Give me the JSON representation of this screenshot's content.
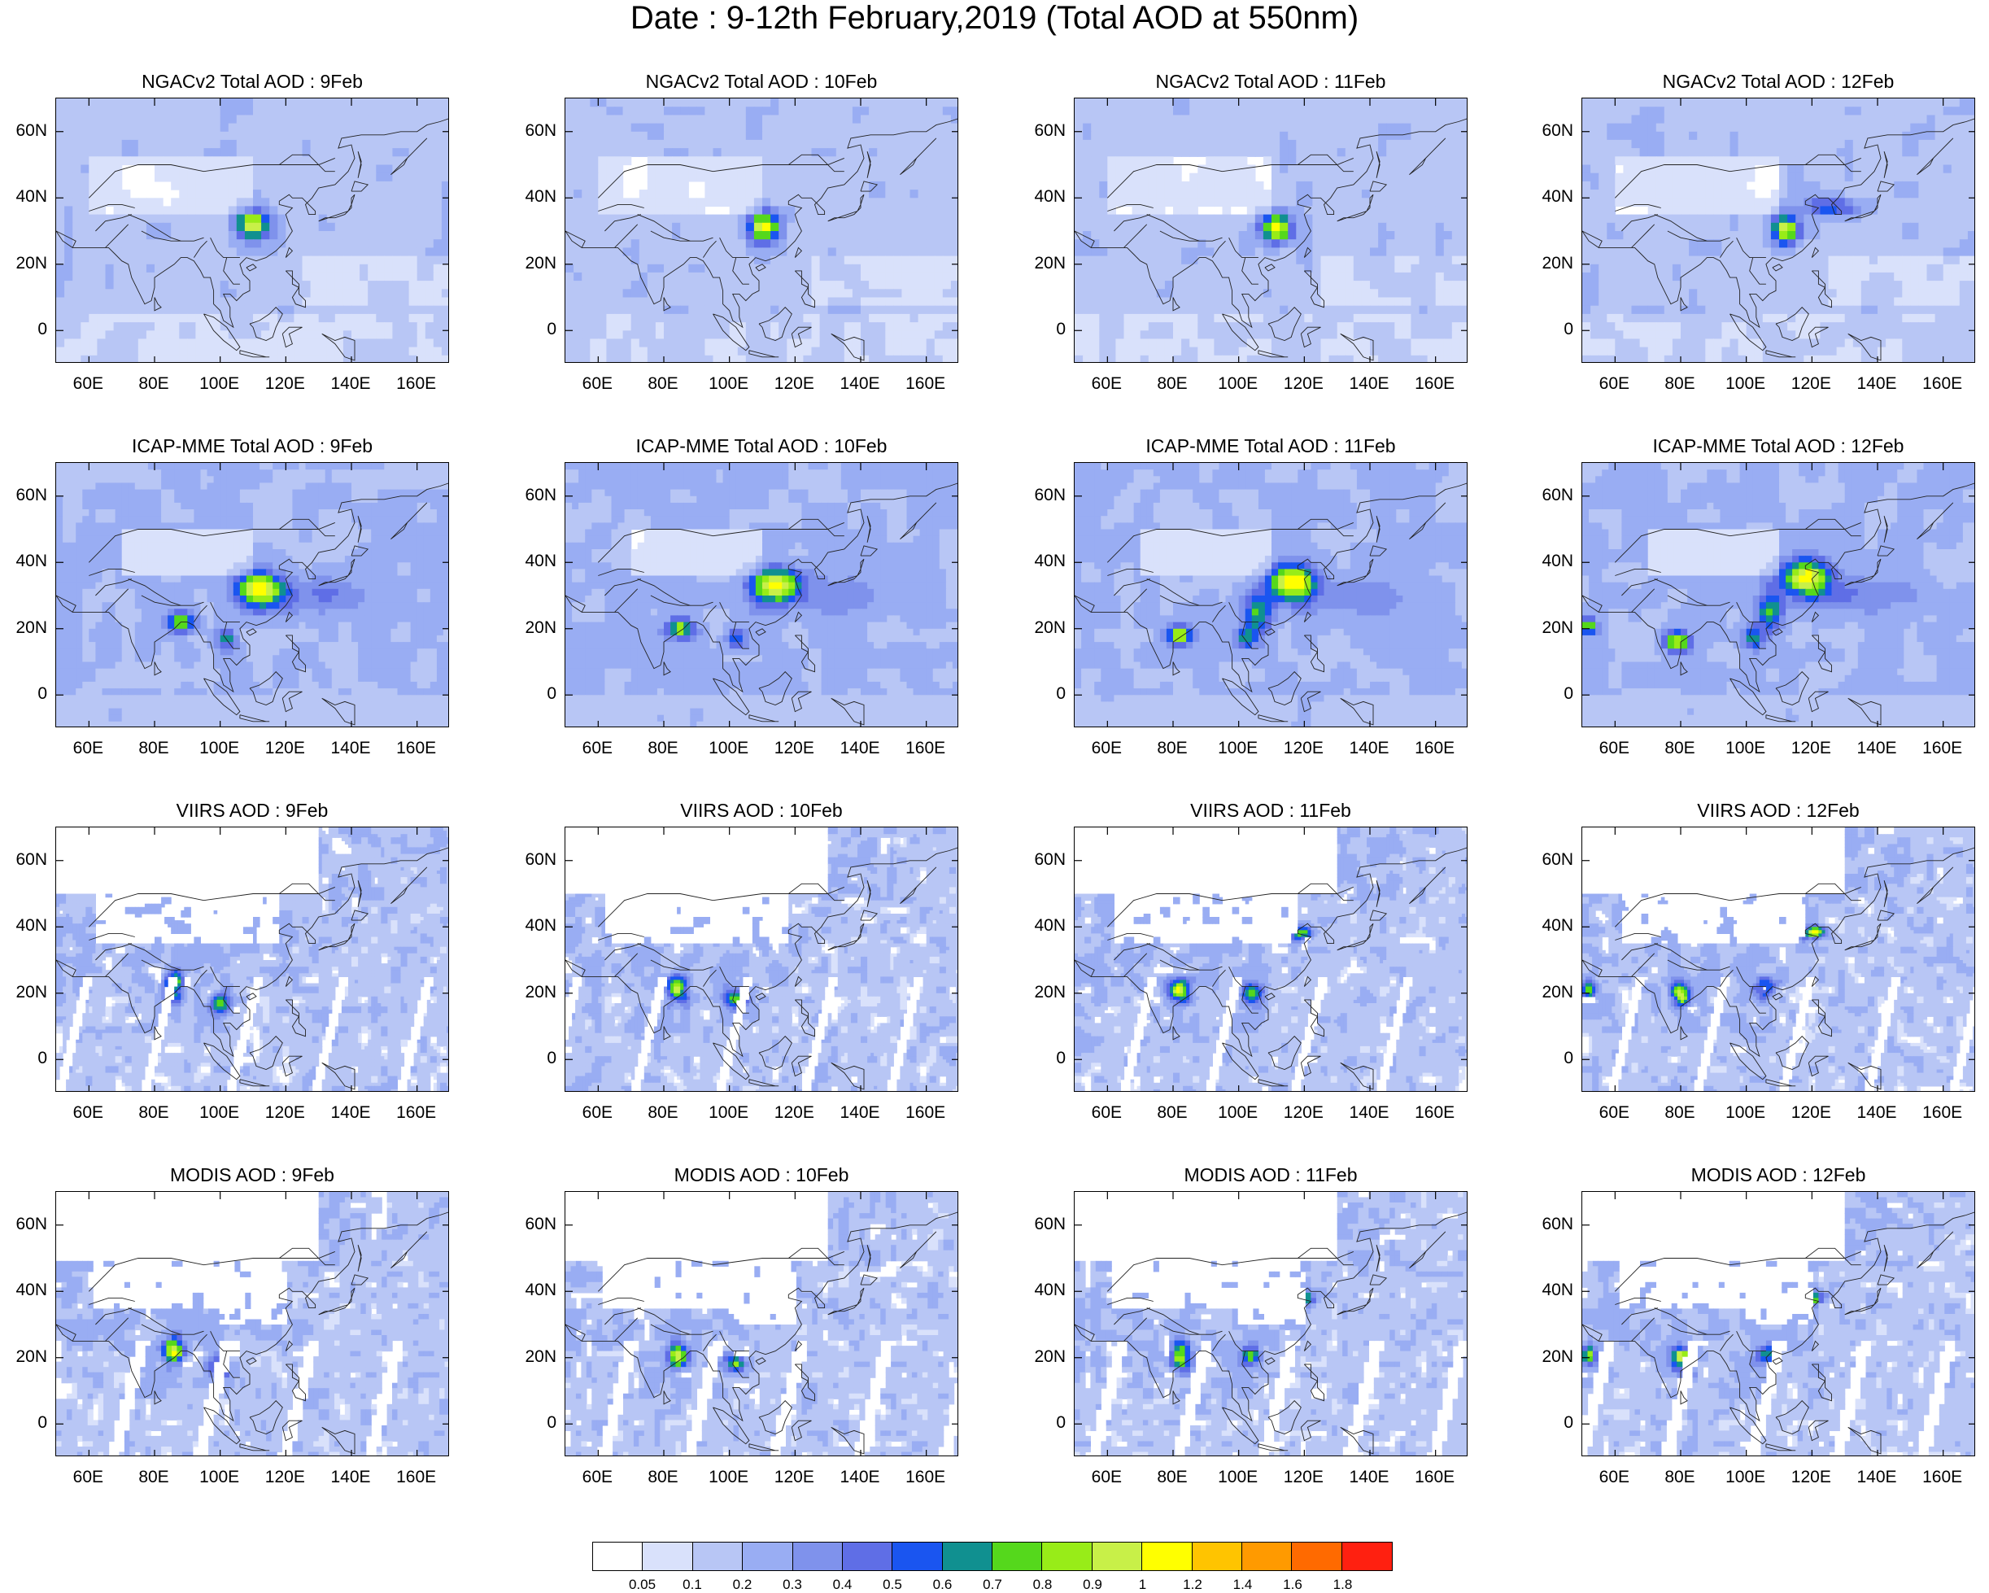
{
  "title": "Date : 9-12th February,2019 (Total AOD at 550nm)",
  "x_ticks": [
    "60E",
    "80E",
    "100E",
    "120E",
    "140E",
    "160E"
  ],
  "y_ticks": [
    "60N",
    "40N",
    "20N",
    "0"
  ],
  "extent": {
    "lon": [
      50,
      170
    ],
    "lat": [
      -10,
      70
    ]
  },
  "panels": [
    {
      "title": "NGACv2 Total AOD : 9Feb",
      "source": "model",
      "day": 0
    },
    {
      "title": "NGACv2 Total AOD : 10Feb",
      "source": "model",
      "day": 1
    },
    {
      "title": "NGACv2 Total AOD : 11Feb",
      "source": "model",
      "day": 2
    },
    {
      "title": "NGACv2 Total AOD : 12Feb",
      "source": "model",
      "day": 3
    },
    {
      "title": "ICAP-MME Total AOD : 9Feb",
      "source": "ensemble",
      "day": 0
    },
    {
      "title": "ICAP-MME Total AOD : 10Feb",
      "source": "ensemble",
      "day": 1
    },
    {
      "title": "ICAP-MME Total AOD : 11Feb",
      "source": "ensemble",
      "day": 2
    },
    {
      "title": "ICAP-MME Total AOD : 12Feb",
      "source": "ensemble",
      "day": 3
    },
    {
      "title": "VIIRS AOD : 9Feb",
      "source": "viirs",
      "day": 0
    },
    {
      "title": "VIIRS AOD : 10Feb",
      "source": "viirs",
      "day": 1
    },
    {
      "title": "VIIRS AOD : 11Feb",
      "source": "viirs",
      "day": 2
    },
    {
      "title": "VIIRS AOD : 12Feb",
      "source": "viirs",
      "day": 3
    },
    {
      "title": "MODIS AOD : 9Feb",
      "source": "modis",
      "day": 0
    },
    {
      "title": "MODIS AOD : 10Feb",
      "source": "modis",
      "day": 1
    },
    {
      "title": "MODIS AOD : 11Feb",
      "source": "modis",
      "day": 2
    },
    {
      "title": "MODIS AOD : 12Feb",
      "source": "modis",
      "day": 3
    }
  ],
  "colorbar": {
    "labels": [
      "0.05",
      "0.1",
      "0.2",
      "0.3",
      "0.4",
      "0.5",
      "0.6",
      "0.7",
      "0.8",
      "0.9",
      "1",
      "1.2",
      "1.4",
      "1.6",
      "1.8"
    ],
    "colors": [
      "#ffffff",
      "#d9e1fb",
      "#b8c6f5",
      "#99adf3",
      "#7f92ec",
      "#5f6ee6",
      "#1a55f0",
      "#109090",
      "#55d81c",
      "#98ec18",
      "#c8f048",
      "#ffff00",
      "#ffc400",
      "#ff9a00",
      "#ff6a00",
      "#ff2010"
    ]
  }
}
